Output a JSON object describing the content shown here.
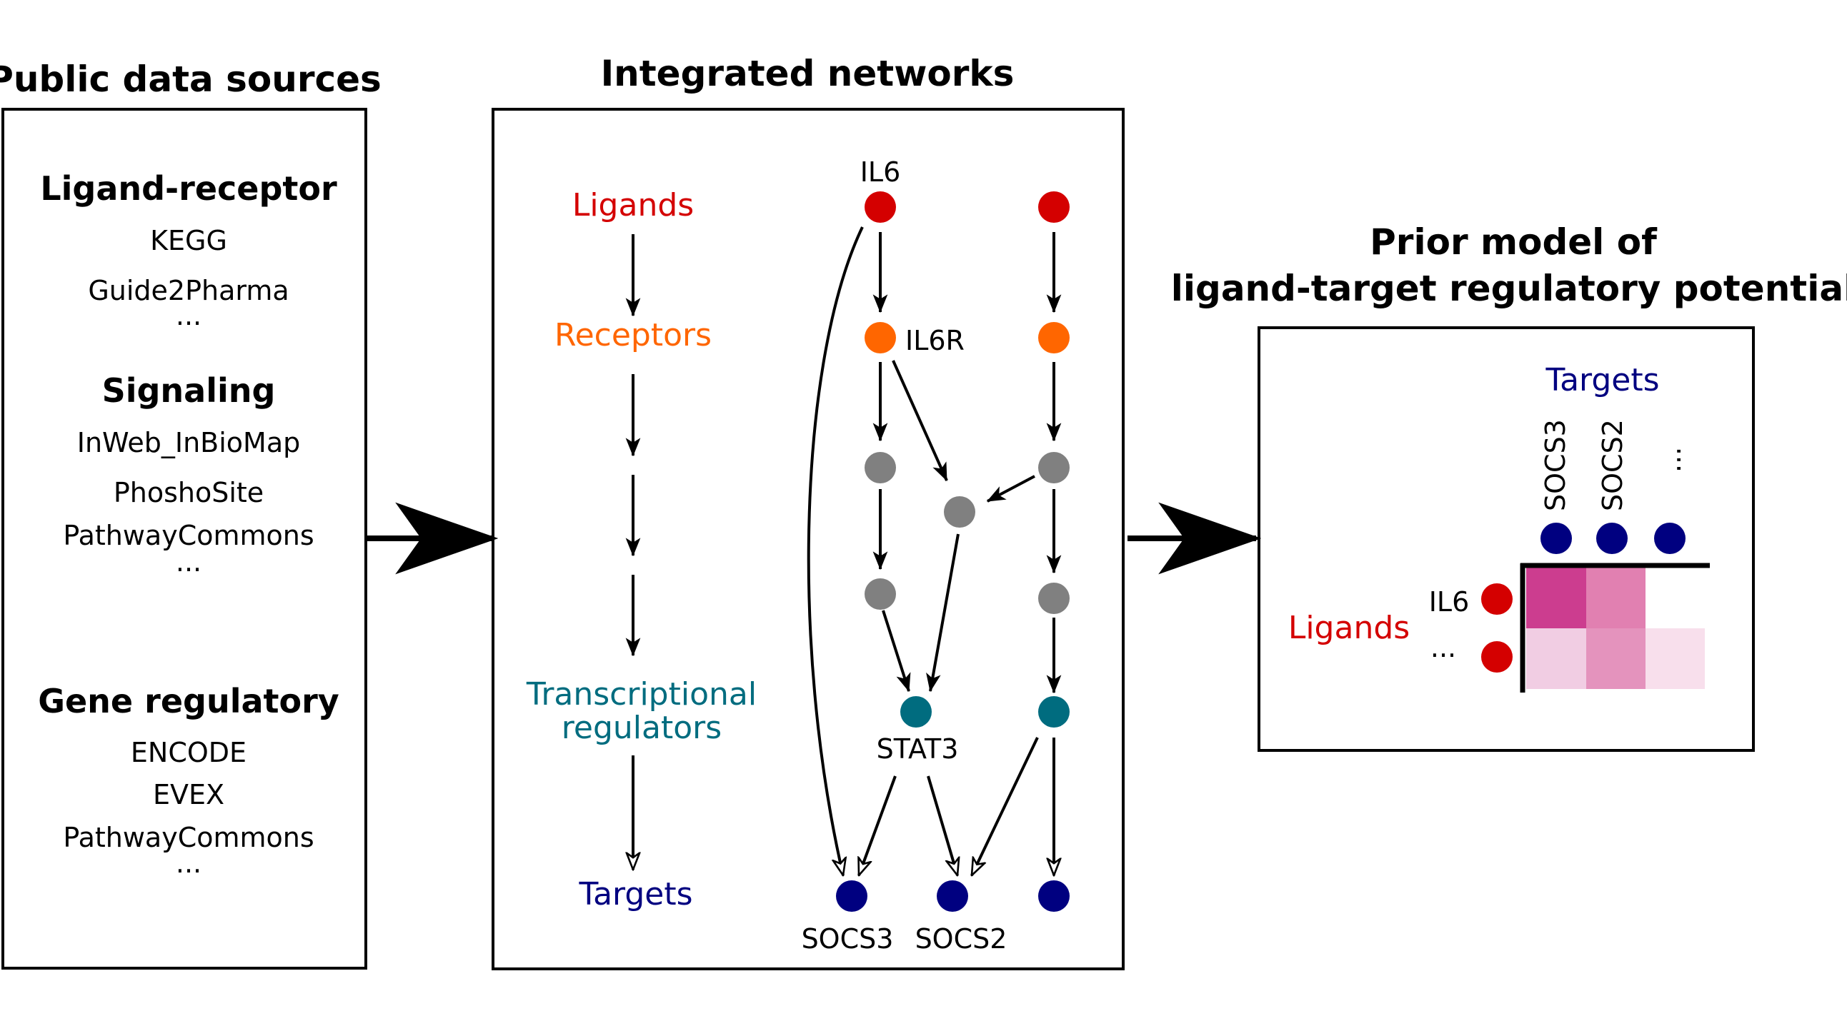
{
  "colors": {
    "ligand": "#d40000",
    "receptor": "#ff6600",
    "intermediate": "#808080",
    "tf": "#006c7f",
    "target": "#000080",
    "heat_strong": "#cc3d8f",
    "heat_medium": "#e180b1",
    "heat_light": "#f1cde3",
    "heat_lightest": "#f8dfec"
  },
  "sources": {
    "title": "Public data sources",
    "groups": [
      {
        "heading": "Ligand-receptor",
        "items": [
          "KEGG",
          "Guide2Pharma",
          "..."
        ]
      },
      {
        "heading": "Signaling",
        "items": [
          "InWeb_InBioMap",
          "PhoshoSite",
          "PathwayCommons",
          "..."
        ]
      },
      {
        "heading": "Gene regulatory",
        "items": [
          "ENCODE",
          "EVEX",
          "PathwayCommons",
          "..."
        ]
      }
    ]
  },
  "network": {
    "title": "Integrated networks",
    "levels": {
      "ligands": "Ligands",
      "receptors": "Receptors",
      "tf_line1": "Transcriptional",
      "tf_line2": "regulators",
      "targets": "Targets"
    },
    "node_labels": {
      "il6": "IL6",
      "il6r": "IL6R",
      "stat3": "STAT3",
      "socs3": "SOCS3",
      "socs2": "SOCS2"
    }
  },
  "prior_model": {
    "title_line1": "Prior model of",
    "title_line2": "ligand-target regulatory potential",
    "targets_label": "Targets",
    "ligands_label": "Ligands",
    "columns": [
      "SOCS3",
      "SOCS2",
      "..."
    ],
    "rows": [
      "IL6",
      "..."
    ]
  }
}
